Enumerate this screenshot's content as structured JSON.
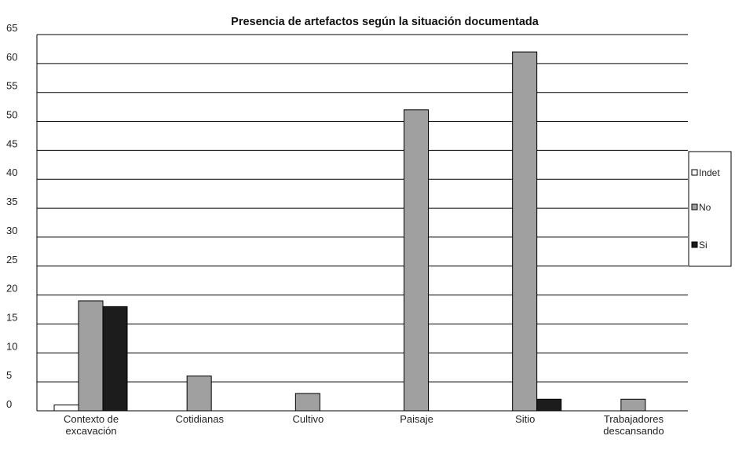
{
  "chart_data": {
    "type": "bar",
    "title": "Presencia de artefactos según la situación documentada",
    "categories": [
      [
        "Contexto de",
        "excavación"
      ],
      [
        "Cotidianas"
      ],
      [
        "Cultivo"
      ],
      [
        "Paisaje"
      ],
      [
        "Sitio"
      ],
      [
        "Trabajadores",
        "descansando"
      ]
    ],
    "series": [
      {
        "name": "Indet",
        "color": "#ffffff",
        "values": [
          1,
          0,
          0,
          0,
          0,
          0
        ]
      },
      {
        "name": "No",
        "color": "#a0a0a0",
        "values": [
          19,
          6,
          3,
          52,
          62,
          2
        ]
      },
      {
        "name": "Si",
        "color": "#1c1c1c",
        "values": [
          18,
          0,
          0,
          0,
          2,
          0
        ]
      }
    ],
    "ylim": [
      0,
      65
    ],
    "yticks": [
      0,
      5,
      10,
      15,
      20,
      25,
      30,
      35,
      40,
      45,
      50,
      55,
      60,
      65
    ],
    "grid": true,
    "legend_position": "right"
  }
}
